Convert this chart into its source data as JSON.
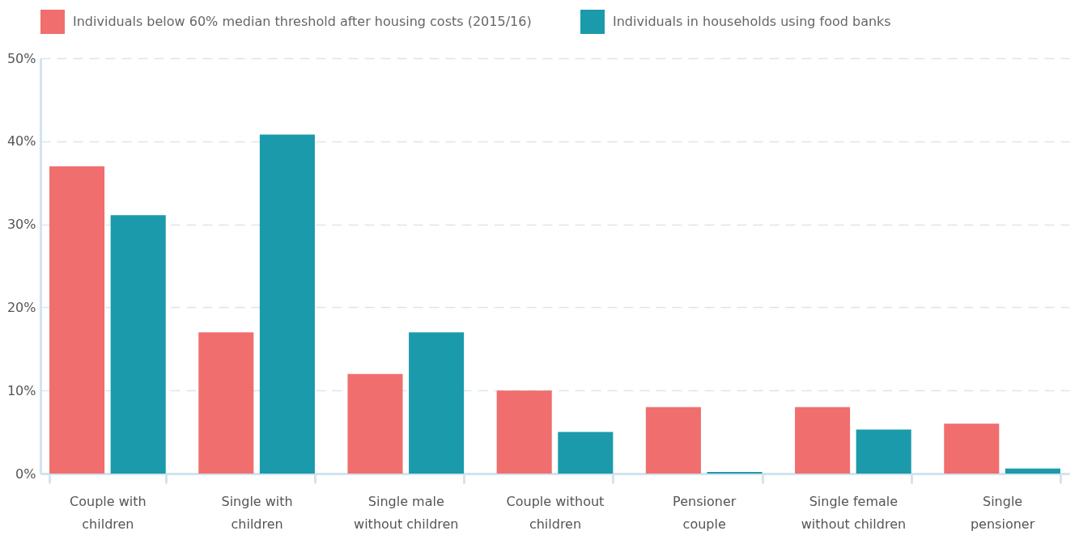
{
  "chart_data": {
    "type": "bar",
    "categories": [
      "Couple with children",
      "Single with children",
      "Single male without children",
      "Couple without children",
      "Pensioner couple",
      "Single female without children",
      "Single pensioner"
    ],
    "series": [
      {
        "name": "Individuals below 60% median threshold after housing costs (2015/16)",
        "color": "#f06e6e",
        "values": [
          37,
          17,
          12,
          10,
          8,
          8,
          6
        ]
      },
      {
        "name": "Individuals in households using food banks",
        "color": "#1b9aab",
        "values": [
          31.1,
          40.8,
          17,
          5,
          0.2,
          5.3,
          0.6
        ]
      }
    ],
    "ylim": [
      0,
      50
    ],
    "yticks": [
      {
        "value": 0,
        "label": "0%"
      },
      {
        "value": 10,
        "label": "10%"
      },
      {
        "value": 20,
        "label": "20%"
      },
      {
        "value": 30,
        "label": "30%"
      },
      {
        "value": 40,
        "label": "40%"
      },
      {
        "value": 50,
        "label": "50%"
      }
    ],
    "grid": "y",
    "legend": "top left"
  }
}
